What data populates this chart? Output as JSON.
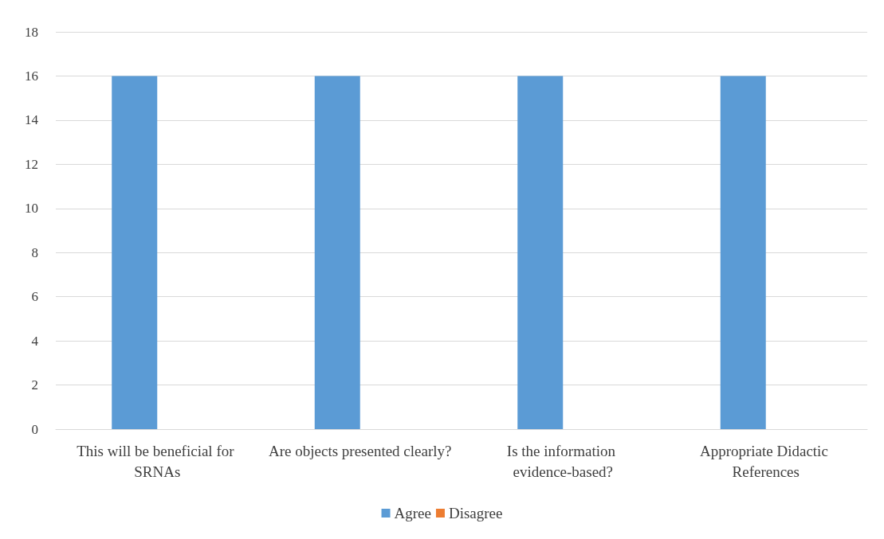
{
  "chart_data": {
    "type": "bar",
    "categories": [
      "This will be beneficial for SRNAs",
      "Are objects presented clearly?",
      "Is the information evidence-based?",
      "Appropriate Didactic References"
    ],
    "series": [
      {
        "name": "Agree",
        "color": "#5b9bd5",
        "values": [
          16,
          16,
          16,
          16
        ]
      },
      {
        "name": "Disagree",
        "color": "#ed7d31",
        "values": [
          0,
          0,
          0,
          0
        ]
      }
    ],
    "ylim": [
      0,
      18
    ],
    "yticks": [
      0,
      2,
      4,
      6,
      8,
      10,
      12,
      14,
      16,
      18
    ],
    "grid": "y",
    "legend": "bottom"
  }
}
